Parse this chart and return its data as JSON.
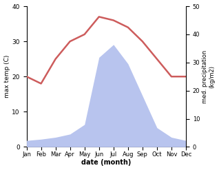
{
  "months": [
    "Jan",
    "Feb",
    "Mar",
    "Apr",
    "May",
    "Jun",
    "Jul",
    "Aug",
    "Sep",
    "Oct",
    "Nov",
    "Dec"
  ],
  "x": [
    0,
    1,
    2,
    3,
    4,
    5,
    6,
    7,
    8,
    9,
    10,
    11
  ],
  "temp": [
    20,
    18,
    25,
    30,
    32,
    37,
    36,
    34,
    30,
    25,
    20,
    20
  ],
  "precip": [
    10,
    12,
    15,
    20,
    35,
    140,
    160,
    130,
    80,
    30,
    15,
    10
  ],
  "temp_color": "#cd5c5c",
  "precip_fill_color": "#b8c4ee",
  "ylabel_left": "max temp (C)",
  "ylabel_right": "med. precipitation\n(kg/m2)",
  "xlabel": "date (month)",
  "ylim_left": [
    0,
    40
  ],
  "ylim_right": [
    0,
    220
  ],
  "yticks_left": [
    0,
    10,
    20,
    30,
    40
  ],
  "yticks_right": [
    0,
    10,
    20,
    30,
    40,
    50
  ],
  "yticklabels_right": [
    "0",
    "10",
    "20",
    "30",
    "40",
    "50"
  ],
  "bg_color": "#ffffff",
  "temp_linewidth": 1.8
}
